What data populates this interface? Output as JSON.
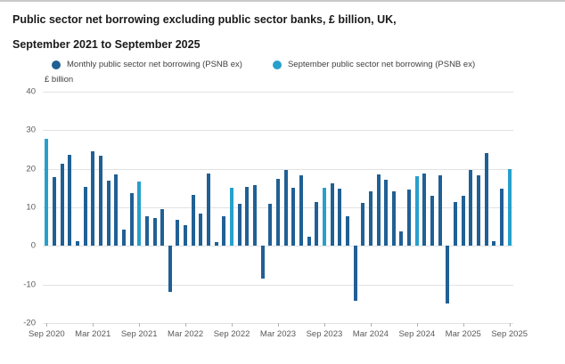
{
  "page": {
    "title_line1": "Public sector net borrowing excluding public sector banks, £ billion, UK,",
    "title_line2": "September 2021 to September 2025"
  },
  "legend": {
    "items": [
      {
        "label": "Monthly public sector net borrowing (PSNB ex)",
        "color": "#206095",
        "icon": "circle"
      },
      {
        "label": "September public sector net borrowing (PSNB ex)",
        "color": "#27a0cc",
        "icon": "circle"
      }
    ]
  },
  "colors": {
    "monthly_bar": "#206095",
    "september_bar": "#27a0cc",
    "gridline": "#e2e2e2",
    "axis_text": "#595959"
  },
  "chart_data": {
    "type": "bar",
    "title": "Public sector net borrowing excluding public sector banks, £ billion, UK, September 2021 to September 2025",
    "ylabel": "£ billion",
    "xlabel": "",
    "ylim": [
      -20,
      40
    ],
    "grid": "horizontal",
    "legend_position": "top",
    "y_ticks": [
      40,
      30,
      20,
      10,
      0,
      -10,
      -20
    ],
    "x_tick_labels": [
      "Sep 2020",
      "Mar 2021",
      "Sep 2021",
      "Mar 2022",
      "Sep 2022",
      "Mar 2023",
      "Sep 2023",
      "Mar 2024",
      "Sep 2024",
      "Mar 2025",
      "Sep 2025"
    ],
    "x_tick_every": 6,
    "series_names": [
      "Monthly public sector net borrowing (PSNB ex)",
      "September public sector net borrowing (PSNB ex)"
    ],
    "categories": [
      "Sep 2020",
      "Oct 2020",
      "Nov 2020",
      "Dec 2020",
      "Jan 2021",
      "Feb 2021",
      "Mar 2021",
      "Apr 2021",
      "May 2021",
      "Jun 2021",
      "Jul 2021",
      "Aug 2021",
      "Sep 2021",
      "Oct 2021",
      "Nov 2021",
      "Dec 2021",
      "Jan 2022",
      "Feb 2022",
      "Mar 2022",
      "Apr 2022",
      "May 2022",
      "Jun 2022",
      "Jul 2022",
      "Aug 2022",
      "Sep 2022",
      "Oct 2022",
      "Nov 2022",
      "Dec 2022",
      "Jan 2023",
      "Feb 2023",
      "Mar 2023",
      "Apr 2023",
      "May 2023",
      "Jun 2023",
      "Jul 2023",
      "Aug 2023",
      "Sep 2023",
      "Oct 2023",
      "Nov 2023",
      "Dec 2023",
      "Jan 2024",
      "Feb 2024",
      "Mar 2024",
      "Apr 2024",
      "May 2024",
      "Jun 2024",
      "Jul 2024",
      "Aug 2024",
      "Sep 2024",
      "Oct 2024",
      "Nov 2024",
      "Dec 2024",
      "Jan 2025",
      "Feb 2025",
      "Mar 2025",
      "Apr 2025",
      "May 2025",
      "Jun 2025",
      "Jul 2025",
      "Aug 2025",
      "Sep 2025"
    ],
    "values": [
      27.8,
      17.8,
      21.3,
      23.6,
      1.3,
      15.4,
      24.6,
      23.4,
      17.0,
      18.6,
      4.2,
      13.8,
      16.7,
      7.7,
      7.2,
      9.5,
      -12.0,
      6.8,
      5.4,
      13.2,
      8.4,
      18.7,
      0.9,
      7.7,
      15.1,
      10.9,
      15.2,
      15.7,
      -8.5,
      10.9,
      17.3,
      19.8,
      15.0,
      18.4,
      2.5,
      11.3,
      15.1,
      16.2,
      14.8,
      7.6,
      -14.2,
      11.1,
      14.1,
      18.5,
      17.1,
      14.1,
      3.7,
      14.6,
      18.0,
      18.7,
      12.9,
      18.3,
      -15.0,
      11.3,
      12.9,
      19.7,
      18.2,
      24.0,
      1.2,
      14.8,
      19.9
    ],
    "september_highlight": true
  }
}
